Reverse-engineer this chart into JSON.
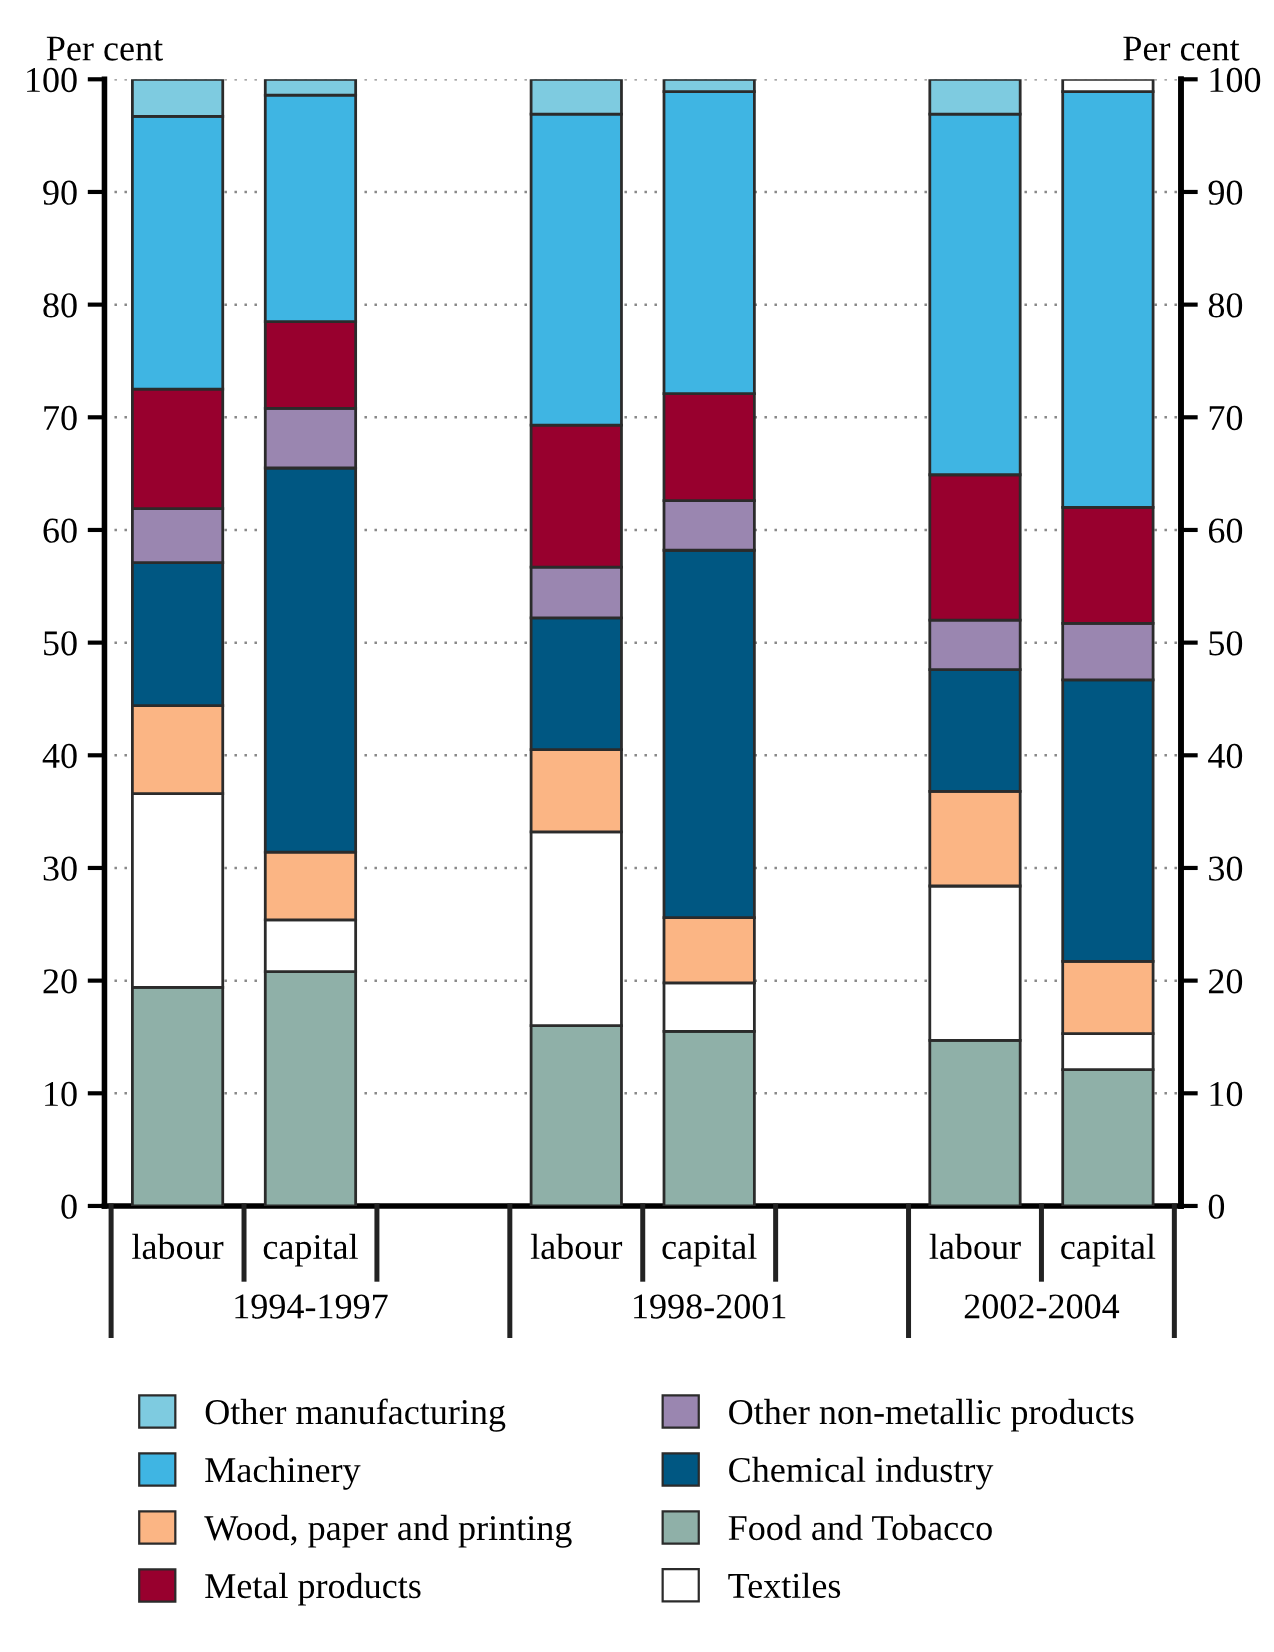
{
  "chart_data": {
    "type": "bar",
    "stacked": true,
    "ylabel": "Per cent",
    "y2label": "Per cent",
    "categories": [
      "labour",
      "capital",
      null,
      "labour",
      "capital",
      null,
      "labour",
      "capital"
    ],
    "annotations": [
      "1994-1997",
      "1998-2001",
      "2002-2004"
    ],
    "series": [
      {
        "name": "Food and Tobacco",
        "color": "#8fb0a8",
        "values": [
          19.4,
          20.8,
          null,
          16.0,
          15.5,
          null,
          14.7,
          12.1
        ]
      },
      {
        "name": "Textiles",
        "color": "#ffffff",
        "values": [
          17.2,
          4.6,
          null,
          17.2,
          4.3,
          null,
          13.7,
          3.2
        ]
      },
      {
        "name": "Wood, paper and printing",
        "color": "#fbb584",
        "values": [
          7.8,
          6.0,
          null,
          7.3,
          5.8,
          null,
          8.4,
          6.4
        ]
      },
      {
        "name": "Chemical industry",
        "color": "#005782",
        "values": [
          12.7,
          34.1,
          null,
          11.7,
          32.6,
          null,
          10.8,
          25.0
        ]
      },
      {
        "name": "Other non-metallic products",
        "color": "#9a86b0",
        "values": [
          4.8,
          5.3,
          null,
          4.5,
          4.4,
          null,
          4.4,
          5.0
        ]
      },
      {
        "name": "Metal products",
        "color": "#98002e",
        "values": [
          10.6,
          7.7,
          null,
          12.6,
          9.5,
          null,
          12.9,
          10.3
        ]
      },
      {
        "name": "Machinery",
        "color": "#3fb5e3",
        "values": [
          24.2,
          20.1,
          null,
          27.6,
          26.8,
          null,
          32.0,
          36.9
        ]
      },
      {
        "name": "Other manufacturing",
        "color": "#7ecbe0",
        "colors": [
          "#7ecbe0",
          "#7ecbe0",
          null,
          "#7ecbe0",
          "#7ecbe0",
          null,
          "#7ecbe0",
          "#ffffff"
        ],
        "values": [
          3.3,
          1.4,
          null,
          3.1,
          1.1,
          null,
          3.1,
          1.1
        ]
      }
    ],
    "ylim": [
      0,
      100
    ],
    "yticks": [
      0,
      10,
      20,
      30,
      40,
      50,
      60,
      70,
      80,
      90,
      100
    ],
    "y2lim": [
      0,
      100
    ],
    "y2ticks": [
      0,
      10,
      20,
      30,
      40,
      50,
      60,
      70,
      80,
      90,
      100
    ],
    "grid": "y",
    "legend": "bottom"
  }
}
